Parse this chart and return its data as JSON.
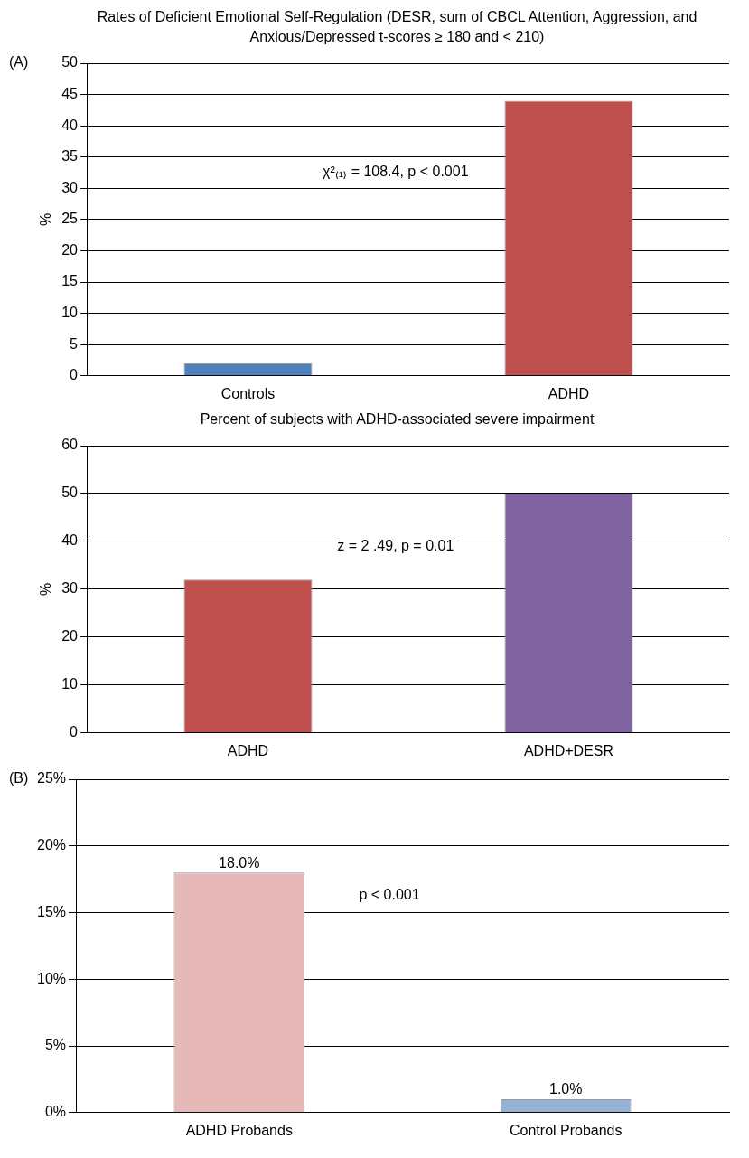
{
  "chart_data": [
    {
      "type": "bar",
      "title": "Rates of Deficient Emotional Self-Regulation (DESR, sum of CBCL Attention, Aggression, and Anxious/Depressed t-scores ≥ 180 and < 210)",
      "ylabel": "%",
      "categories": [
        "Controls",
        "ADHD"
      ],
      "values": [
        2,
        44
      ],
      "colors": [
        "#4f81bd",
        "#c0504d"
      ],
      "ylim": [
        0,
        50
      ],
      "yticks": [
        0,
        5,
        10,
        15,
        20,
        25,
        30,
        35,
        40,
        45,
        50
      ],
      "grid": "y",
      "annotations": [
        "χ²₍₁₎ = 108.4, p < 0.001",
        "(A)"
      ]
    },
    {
      "type": "bar",
      "title": "Percent of subjects with ADHD-associated severe impairment",
      "ylabel": "%",
      "categories": [
        "ADHD",
        "ADHD+DESR"
      ],
      "values": [
        32,
        50
      ],
      "colors": [
        "#c0504d",
        "#8064a2"
      ],
      "ylim": [
        0,
        60
      ],
      "yticks": [
        0,
        10,
        20,
        30,
        40,
        50,
        60
      ],
      "grid": "y",
      "annotations": [
        "z = 2 .49, p = 0.01"
      ]
    },
    {
      "type": "bar",
      "categories": [
        "ADHD Probands",
        "Control Probands"
      ],
      "values": [
        18,
        1
      ],
      "value_labels": [
        "18.0%",
        "1.0%"
      ],
      "colors": [
        "#e6b9b8",
        "#95b3d7"
      ],
      "ylim": [
        0,
        25
      ],
      "yticks": [
        {
          "value": 0,
          "label": "0%"
        },
        {
          "value": 5,
          "label": "5%"
        },
        {
          "value": 10,
          "label": "10%"
        },
        {
          "value": 15,
          "label": "15%"
        },
        {
          "value": 20,
          "label": "20%"
        },
        {
          "value": 25,
          "label": "25%"
        }
      ],
      "grid": "y",
      "annotations": [
        "p < 0.001",
        "(B)"
      ]
    }
  ]
}
